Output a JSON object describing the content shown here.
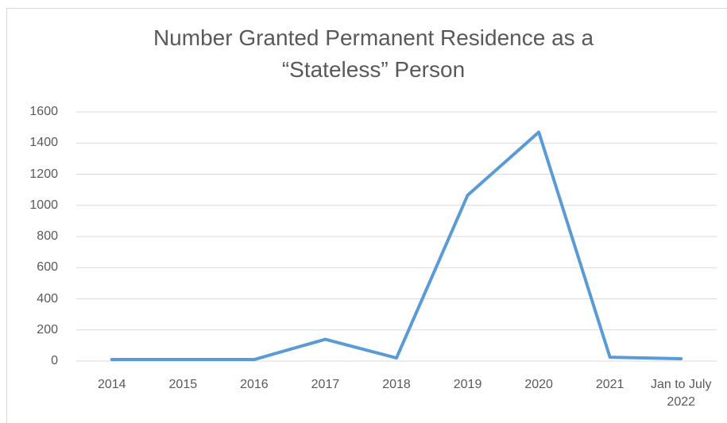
{
  "chart_data": {
    "type": "line",
    "title": "Number Granted Permanent Residence as a “Stateless” Person",
    "categories": [
      "2014",
      "2015",
      "2016",
      "2017",
      "2018",
      "2019",
      "2020",
      "2021",
      "Jan to July 2022"
    ],
    "series": [
      {
        "name": "Number granted",
        "color": "#5b9bd5",
        "values": [
          10,
          10,
          10,
          140,
          20,
          1065,
          1470,
          25,
          15
        ]
      }
    ],
    "ylim": [
      0,
      1600
    ],
    "yticks": [
      0,
      200,
      400,
      600,
      800,
      1000,
      1200,
      1400,
      1600
    ],
    "grid": true
  }
}
